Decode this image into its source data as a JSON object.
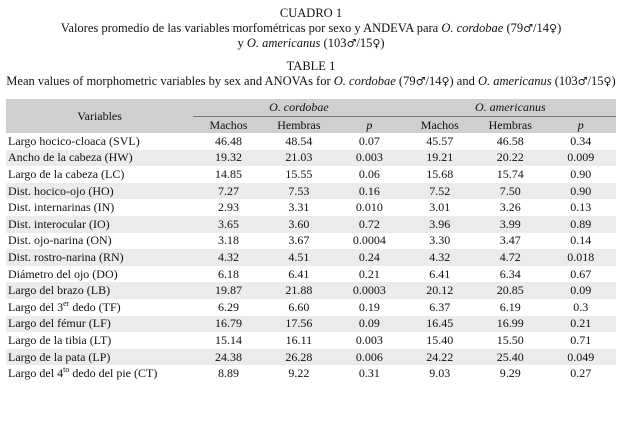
{
  "caption_es": {
    "title": "CUADRO 1",
    "line1_text": "Valores promedio de las variables morfométricas por sexo y ANDEVA para",
    "line1_species": "O. cordobae",
    "line1_counts_open": "(79",
    "male_symbol": "♂",
    "slash_14": "/14",
    "female_symbol": "♀",
    "close_paren": ")",
    "line2_y": "y",
    "line2_species": "O. americanus",
    "line2_counts_open": "(103",
    "slash_15": "/15"
  },
  "caption_en": {
    "title": "TABLE 1",
    "line_text": "Mean values of morphometric variables by sex and ANOVAs for",
    "species1": "O. cordobae",
    "counts1_open": "(79",
    "slash_14": "/14",
    "close_paren": ")",
    "and": "and",
    "species2": "O. americanus",
    "counts2_open": "(103",
    "slash_15": "/15"
  },
  "table": {
    "var_header": "Variables",
    "group1": "O. cordobae",
    "group2": "O. americanus",
    "subheaders": [
      "Machos",
      "Hembras",
      "p",
      "Machos",
      "Hembras",
      "p"
    ],
    "rows": [
      {
        "var": "Largo hocico-cloaca (SVL)",
        "v": [
          "46.48",
          "48.54",
          "0.07",
          "45.57",
          "46.58",
          "0.34"
        ]
      },
      {
        "var": "Ancho de la cabeza (HW)",
        "v": [
          "19.32",
          "21.03",
          "0.003",
          "19.21",
          "20.22",
          "0.009"
        ]
      },
      {
        "var": "Largo de la cabeza (LC)",
        "v": [
          "14.85",
          "15.55",
          "0.06",
          "15.68",
          "15.74",
          "0.90"
        ]
      },
      {
        "var": "Dist. hocico-ojo (HO)",
        "v": [
          "7.27",
          "7.53",
          "0.16",
          "7.52",
          "7.50",
          "0.90"
        ]
      },
      {
        "var": "Dist. internarinas (IN)",
        "v": [
          "2.93",
          "3.31",
          "0.010",
          "3.01",
          "3.26",
          "0.13"
        ]
      },
      {
        "var": "Dist. interocular (IO)",
        "v": [
          "3.65",
          "3.60",
          "0.72",
          "3.96",
          "3.99",
          "0.89"
        ]
      },
      {
        "var": "Dist. ojo-narina (ON)",
        "v": [
          "3.18",
          "3.67",
          "0.0004",
          "3.30",
          "3.47",
          "0.14"
        ]
      },
      {
        "var": "Dist. rostro-narina (RN)",
        "v": [
          "4.32",
          "4.51",
          "0.24",
          "4.32",
          "4.72",
          "0.018"
        ]
      },
      {
        "var": "Diámetro del ojo (DO)",
        "v": [
          "6.18",
          "6.41",
          "0.21",
          "6.41",
          "6.34",
          "0.67"
        ]
      },
      {
        "var": "Largo del brazo (LB)",
        "v": [
          "19.87",
          "21.88",
          "0.0003",
          "20.12",
          "20.85",
          "0.09"
        ]
      },
      {
        "var_pre": "Largo del 3",
        "var_sup": "er",
        "var_post": " dedo (TF)",
        "v": [
          "6.29",
          "6.60",
          "0.19",
          "6.37",
          "6.19",
          "0.3"
        ]
      },
      {
        "var": "Largo del fémur (LF)",
        "v": [
          "16.79",
          "17.56",
          "0.09",
          "16.45",
          "16.99",
          "0.21"
        ]
      },
      {
        "var": "Largo de la tibia (LT)",
        "v": [
          "15.14",
          "16.11",
          "0.003",
          "15.40",
          "15.50",
          "0.71"
        ]
      },
      {
        "var": "Largo de la pata (LP)",
        "v": [
          "24.38",
          "26.28",
          "0.006",
          "24.22",
          "25.40",
          "0.049"
        ]
      },
      {
        "var_pre": "Largo del 4",
        "var_sup": "to",
        "var_post": " dedo del pie (CT)",
        "v": [
          "8.89",
          "9.22",
          "0.31",
          "9.03",
          "9.29",
          "0.27"
        ]
      }
    ]
  }
}
